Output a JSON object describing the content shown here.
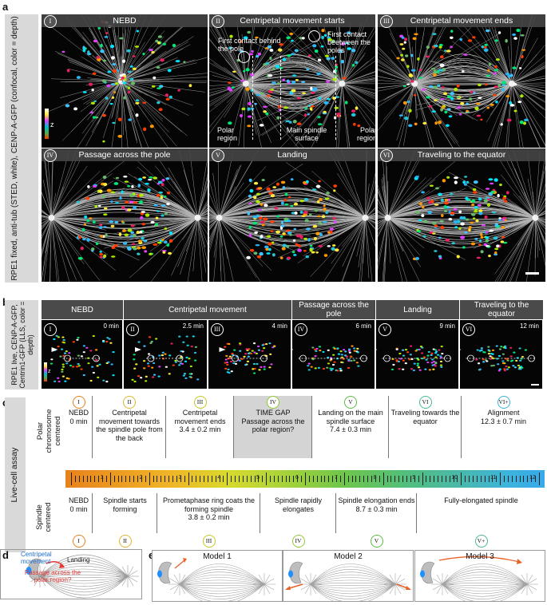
{
  "panel_labels": {
    "a": "a",
    "b": "b",
    "c": "c",
    "d": "d",
    "e": "e"
  },
  "panel_a": {
    "sidebar": "RPE1 fixed, anti-tub (STED, white), CENP-A-GFP (confocal, color = depth)",
    "depth_label": "z",
    "tiles": [
      {
        "roman": "I",
        "title": "NEBD"
      },
      {
        "roman": "II",
        "title": "Centripetal movement starts"
      },
      {
        "roman": "III",
        "title": "Centripetal movement ends"
      },
      {
        "roman": "IV",
        "title": "Passage across the pole"
      },
      {
        "roman": "V",
        "title": "Landing"
      },
      {
        "roman": "VI",
        "title": "Traveling to the equator"
      }
    ],
    "annotations": {
      "first_contact_behind": "First contact behind the pole",
      "first_contact_between": "First contact beetween the poles",
      "polar_region_left": "Polar region",
      "main_spindle": "Main spindle surface",
      "polar_region_right": "Polar region"
    }
  },
  "panel_b": {
    "sidebar": "RPE1 live, CENP-A-GFP, Centrin1-GFP (LLS, color = depth)",
    "depth_label": "z",
    "headers": [
      "NEBD",
      "Centripetal movement",
      "Passage across the pole",
      "Landing",
      "Traveling to the equator"
    ],
    "tiles": [
      {
        "roman": "I",
        "time": "0 min"
      },
      {
        "roman": "II",
        "time": "2.5 min"
      },
      {
        "roman": "III",
        "time": "4 min"
      },
      {
        "roman": "IV",
        "time": "6 min"
      },
      {
        "roman": "V",
        "time": "9 min"
      },
      {
        "roman": "VI",
        "time": "12 min"
      }
    ]
  },
  "panel_c": {
    "sidebar": "Live-cell assay",
    "top_label": "Polar chromosome centered",
    "bottom_label": "Spindle centered",
    "top_stages": [
      {
        "roman": "I",
        "text": "NEBD\n0 min",
        "color": "#e8821c"
      },
      {
        "roman": "II",
        "text": "Centripetal movement towards the spindle pole from the back",
        "color": "#e0b72c"
      },
      {
        "roman": "III",
        "text": "Centripetal movement ends\n3.4 ± 0.2 min",
        "color": "#c6c825"
      },
      {
        "roman": "IV",
        "text": "TIME GAP\nPassage across the polar region?",
        "color": "#8fc93a"
      },
      {
        "roman": "V",
        "text": "Landing on the main spindle surface\n7.4 ± 0.3 min",
        "color": "#5cbd44"
      },
      {
        "roman": "VI",
        "text": "Traveling towards the equator",
        "color": "#4cb79a"
      },
      {
        "roman": "VI+",
        "text": "Alignment\n12.3 ± 0.7 min",
        "color": "#3fb2d9"
      }
    ],
    "bottom_stages": [
      {
        "roman": "I",
        "text": "NEBD\n0 min",
        "color": "#e8821c"
      },
      {
        "roman": "II",
        "text": "Spindle starts forming",
        "color": "#e0b72c"
      },
      {
        "roman": "III",
        "text": "Prometaphase ring coats the forming spindle\n3.8 ± 0.2 min",
        "color": "#c6c825"
      },
      {
        "roman": "IV",
        "text": "Spindle rapidly elongates",
        "color": "#8fc93a"
      },
      {
        "roman": "V",
        "text": "Spindle elongation ends\n8.7 ± 0.3 min",
        "color": "#5cbd44"
      },
      {
        "roman": "V+",
        "text": "Fully-elongated spindle",
        "color": "#4cb79a"
      }
    ],
    "timeline_labels": [
      "1",
      "2",
      "3",
      "4",
      "5",
      "6",
      "7",
      "8",
      "9",
      "10",
      "11",
      "12"
    ]
  },
  "panel_d": {
    "centripetal": "Centripetal movement",
    "landing": "Landing",
    "passage": "Passage across the polar region?"
  },
  "panel_e": {
    "models": [
      "Model 1",
      "Model 2",
      "Model 3"
    ]
  }
}
